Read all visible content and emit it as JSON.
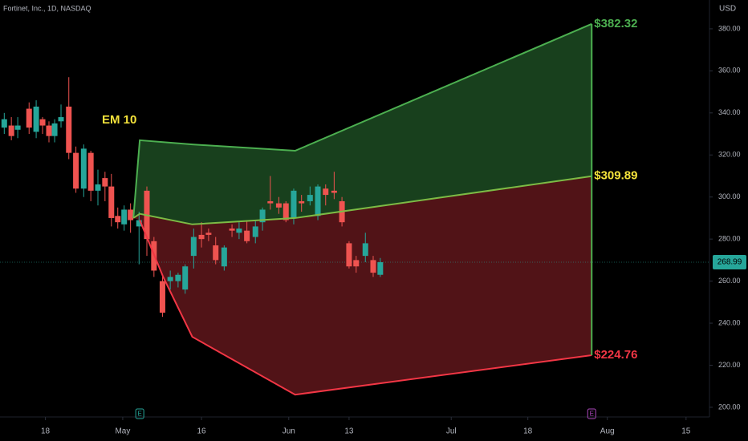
{
  "chart_data": {
    "type": "candlestick",
    "title": "Fortinet, Inc., 1D, NASDAQ",
    "y_axis_label": "USD",
    "xlim": [
      0,
      100
    ],
    "xticks": [
      {
        "value": 6.4,
        "label": "18"
      },
      {
        "value": 17.3,
        "label": "May"
      },
      {
        "value": 28.4,
        "label": "16"
      },
      {
        "value": 40.7,
        "label": "Jun"
      },
      {
        "value": 49.2,
        "label": "13"
      },
      {
        "value": 63.6,
        "label": "Jul"
      },
      {
        "value": 74.4,
        "label": "18"
      },
      {
        "value": 85.6,
        "label": "Aug"
      },
      {
        "value": 96.7,
        "label": "15"
      }
    ],
    "ylim": [
      195.4,
      393.7
    ],
    "yticks": [
      {
        "value": 200,
        "label": "200.00"
      },
      {
        "value": 220,
        "label": "220.00"
      },
      {
        "value": 240,
        "label": "240.00"
      },
      {
        "value": 260,
        "label": "260.00"
      },
      {
        "value": 280,
        "label": "280.00"
      },
      {
        "value": 300,
        "label": "300.00"
      },
      {
        "value": 320,
        "label": "320.00"
      },
      {
        "value": 340,
        "label": "340.00"
      },
      {
        "value": 360,
        "label": "360.00"
      },
      {
        "value": 380,
        "label": "380.00"
      }
    ],
    "grid": false,
    "up_color": "#26a69a",
    "down_color": "#ef5350",
    "x": [
      0.6,
      1.6,
      2.5,
      4.1,
      5.1,
      6.0,
      6.9,
      7.7,
      8.6,
      9.7,
      10.7,
      11.8,
      12.8,
      13.8,
      14.8,
      15.7,
      16.6,
      17.5,
      18.4,
      19.6,
      20.7,
      21.7,
      22.9,
      24.0,
      25.1,
      26.1,
      27.3,
      28.4,
      29.4,
      30.4,
      31.6,
      32.7,
      33.7,
      34.8,
      36.0,
      37.0,
      38.1,
      39.3,
      40.3,
      41.4,
      42.5,
      43.7,
      44.8,
      45.9,
      47.1,
      48.2,
      49.2,
      50.2,
      51.5,
      52.6,
      53.6
    ],
    "open": [
      333,
      334,
      332,
      342,
      331,
      337,
      334,
      329,
      336,
      343,
      321,
      304,
      321,
      303,
      309,
      305,
      291,
      287,
      294,
      286,
      303,
      279,
      260,
      260,
      260,
      256,
      272,
      282,
      283,
      277,
      267,
      285,
      283,
      284,
      281,
      288,
      298,
      297,
      297,
      290,
      298,
      298,
      291,
      304,
      303,
      298,
      278,
      270,
      272,
      270,
      263
    ],
    "high": [
      340,
      338,
      338,
      345,
      346,
      338,
      336,
      337,
      344,
      357,
      324,
      325,
      322,
      313,
      312,
      311,
      295,
      296,
      297,
      293,
      305,
      281,
      262,
      265,
      264,
      268,
      285,
      288,
      285,
      281,
      277,
      287,
      288,
      289,
      289,
      295,
      310,
      300,
      298,
      304,
      301,
      305,
      306,
      306,
      312,
      300,
      279,
      272,
      283,
      272,
      271
    ],
    "low": [
      330,
      327,
      328,
      330,
      328,
      330,
      326,
      326,
      333,
      318,
      302,
      300,
      298,
      296,
      298,
      286,
      285,
      284,
      283,
      268,
      272,
      262,
      243,
      256,
      257,
      254,
      266,
      276,
      279,
      268,
      265,
      281,
      280,
      278,
      278,
      284,
      294,
      292,
      288,
      287,
      293,
      296,
      289,
      296,
      299,
      286,
      266,
      264,
      269,
      262,
      262
    ],
    "close": [
      337,
      329,
      334,
      333,
      343,
      334,
      329,
      335,
      338,
      321,
      304,
      323,
      303,
      306,
      305,
      290,
      288,
      294,
      289,
      289,
      280,
      265,
      245,
      262,
      263,
      267,
      281,
      280,
      282,
      270,
      276,
      284,
      285,
      279,
      286,
      294,
      297,
      295,
      289,
      303,
      297,
      301,
      305,
      301,
      302,
      288,
      267,
      267,
      278,
      264,
      268.99
    ],
    "last_price": 268.99,
    "last_price_color": "#26a69a",
    "lines": [
      {
        "color": "#4caf50",
        "x": [
          18.8,
          19.7,
          27.1,
          41.6,
          83.4
        ],
        "values": [
          290,
          327,
          325,
          322,
          382.32
        ],
        "value_label": "$382.32"
      },
      {
        "color": "#7cbb45",
        "x": [
          18.8,
          19.7,
          27.1,
          41.6,
          83.4
        ],
        "values": [
          290,
          292,
          287,
          290,
          309.89
        ],
        "value_label": "$309.89",
        "label_color": "#f5e33b"
      },
      {
        "color": "#f23645",
        "x": [
          19.7,
          23.0,
          27.1,
          41.6,
          83.4
        ],
        "values": [
          289,
          262,
          233.5,
          206,
          224.76
        ],
        "value_label": "$224.76"
      }
    ],
    "upper_fill": "#1b4720",
    "lower_fill": "#5a1519",
    "annotation": "EM 10",
    "annotation_color": "#f5e33b",
    "events": [
      {
        "x": 19.7,
        "label": "E",
        "color": "#26a69a"
      },
      {
        "x": 83.4,
        "label": "E",
        "color": "#ab47bc"
      }
    ]
  }
}
